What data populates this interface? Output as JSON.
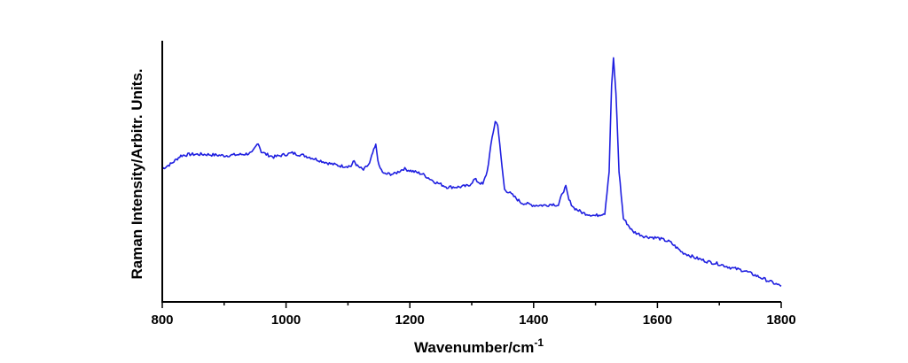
{
  "chart_data": {
    "type": "line",
    "title": "",
    "xlabel": "Wavenumber/cm",
    "xlabel_superscript": "-1",
    "ylabel": "Raman Intensity/Arbitr. Units.",
    "xlim": [
      800,
      1800
    ],
    "ylim": [
      0,
      1
    ],
    "x_ticks": [
      "800",
      "1000",
      "1200",
      "1400",
      "1600",
      "1800"
    ],
    "y_tick_labels": false,
    "grid": false,
    "legend": "none",
    "line_color": "#1f1fe0",
    "series": [
      {
        "x": [
          800,
          815,
          830,
          845,
          870,
          900,
          930,
          945,
          950,
          955,
          960,
          968,
          980,
          1000,
          1010,
          1030,
          1050,
          1070,
          1090,
          1105,
          1110,
          1115,
          1125,
          1135,
          1140,
          1145,
          1150,
          1158,
          1165,
          1175,
          1190,
          1205,
          1220,
          1240,
          1260,
          1280,
          1295,
          1305,
          1310,
          1318,
          1325,
          1333,
          1338,
          1342,
          1347,
          1353,
          1360,
          1380,
          1400,
          1420,
          1430,
          1440,
          1447,
          1452,
          1457,
          1465,
          1480,
          1500,
          1515,
          1522,
          1526,
          1529,
          1533,
          1538,
          1545,
          1560,
          1580,
          1600,
          1620,
          1640,
          1660,
          1680,
          1700,
          1720,
          1740,
          1760,
          1780,
          1800
        ],
        "y": [
          0.51,
          0.53,
          0.56,
          0.565,
          0.565,
          0.56,
          0.565,
          0.57,
          0.59,
          0.61,
          0.575,
          0.565,
          0.555,
          0.565,
          0.57,
          0.56,
          0.545,
          0.53,
          0.52,
          0.52,
          0.54,
          0.52,
          0.505,
          0.53,
          0.57,
          0.6,
          0.52,
          0.49,
          0.49,
          0.49,
          0.51,
          0.5,
          0.49,
          0.46,
          0.44,
          0.44,
          0.445,
          0.47,
          0.46,
          0.45,
          0.5,
          0.63,
          0.69,
          0.68,
          0.56,
          0.43,
          0.42,
          0.38,
          0.37,
          0.37,
          0.375,
          0.37,
          0.42,
          0.44,
          0.39,
          0.36,
          0.34,
          0.33,
          0.34,
          0.5,
          0.83,
          0.93,
          0.8,
          0.5,
          0.32,
          0.27,
          0.25,
          0.245,
          0.23,
          0.19,
          0.17,
          0.155,
          0.145,
          0.13,
          0.12,
          0.1,
          0.08,
          0.06
        ]
      }
    ]
  }
}
